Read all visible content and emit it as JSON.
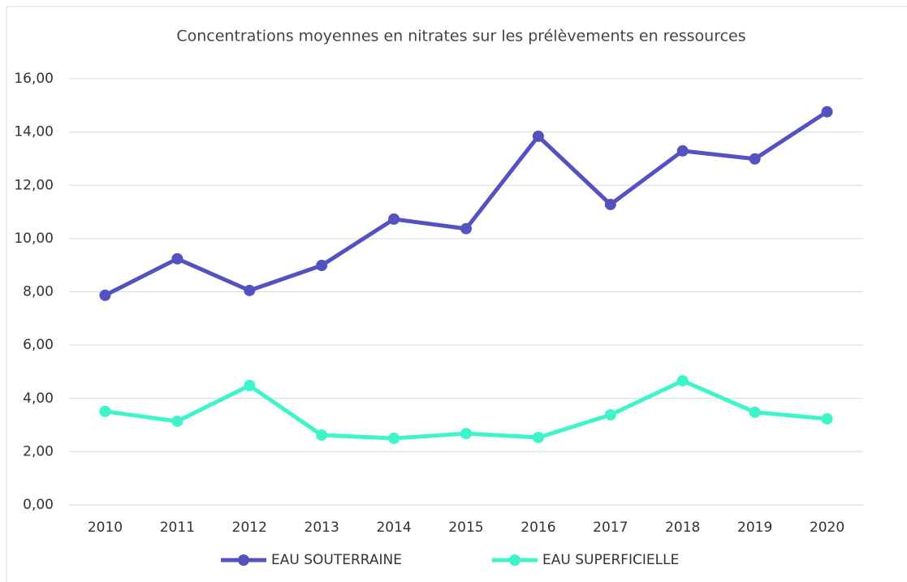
{
  "chart_data": {
    "type": "line",
    "title": "Concentrations moyennes en nitrates sur les prélèvements en ressources",
    "categories": [
      "2010",
      "2011",
      "2012",
      "2013",
      "2014",
      "2015",
      "2016",
      "2017",
      "2018",
      "2019",
      "2020"
    ],
    "series": [
      {
        "name": "EAU SOUTERRAINE",
        "color": "#5451c0",
        "values": [
          7.87,
          9.24,
          8.05,
          8.99,
          10.73,
          10.37,
          13.84,
          11.28,
          13.29,
          12.99,
          14.76
        ]
      },
      {
        "name": "EAU SUPERFICIELLE",
        "color": "#3ef5c9",
        "values": [
          3.51,
          3.14,
          4.48,
          2.62,
          2.5,
          2.68,
          2.53,
          3.38,
          4.66,
          3.48,
          3.23
        ]
      }
    ],
    "ylim": [
      0,
      16
    ],
    "yticks": [
      {
        "value": 0,
        "label": "0,00"
      },
      {
        "value": 2,
        "label": "2,00"
      },
      {
        "value": 4,
        "label": "4,00"
      },
      {
        "value": 6,
        "label": "6,00"
      },
      {
        "value": 8,
        "label": "8,00"
      },
      {
        "value": 10,
        "label": "10,00"
      },
      {
        "value": 12,
        "label": "12,00"
      },
      {
        "value": 14,
        "label": "14,00"
      },
      {
        "value": 16,
        "label": "16,00"
      }
    ],
    "grid": true,
    "legend": "bottom"
  }
}
